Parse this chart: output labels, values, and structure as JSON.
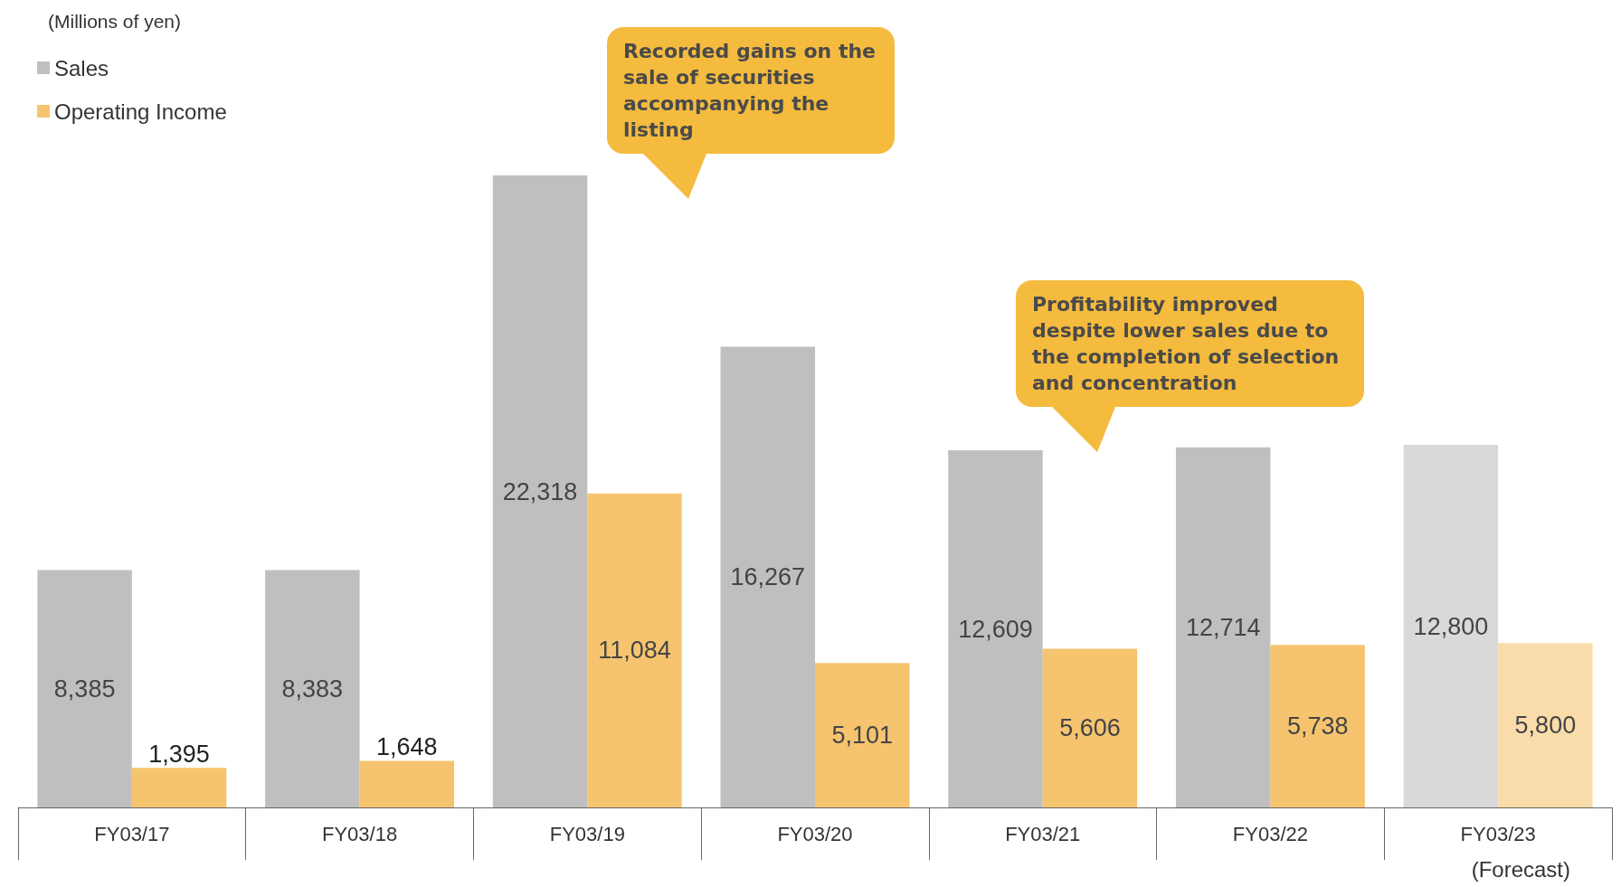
{
  "chart_data": {
    "type": "bar",
    "categories": [
      "FY03/17",
      "FY03/18",
      "FY03/19",
      "FY03/20",
      "FY03/21",
      "FY03/22",
      "FY03/23"
    ],
    "series": [
      {
        "name": "Sales",
        "color": "#bfbfbf",
        "colors": [
          "#bfbfbf",
          "#bfbfbf",
          "#bfbfbf",
          "#bfbfbf",
          "#bfbfbf",
          "#bfbfbf",
          "#d9d9d9"
        ],
        "values": [
          8385,
          8383,
          22318,
          16267,
          12609,
          12714,
          12800
        ],
        "value_labels": [
          "8,385",
          "8,383",
          "22,318",
          "16,267",
          "12,609",
          "12,714",
          "12,800"
        ]
      },
      {
        "name": "Operating Income",
        "color": "#f6c46f",
        "colors": [
          "#f6c46f",
          "#f6c46f",
          "#f6c46f",
          "#f6c46f",
          "#f6c46f",
          "#f6c46f",
          "#fadcaa"
        ],
        "values": [
          1395,
          1648,
          11084,
          5101,
          5606,
          5738,
          5800
        ],
        "value_labels": [
          "1,395",
          "1,648",
          "11,084",
          "5,101",
          "5,606",
          "5,738",
          "5,800"
        ]
      }
    ],
    "legend": "top left",
    "grid": false,
    "annotations": [
      "(Millions of yen)",
      "Recorded gains on the sale of securities accompanying the listing",
      "Profitability improved despite lower sales due to the completion of selection and concentration",
      "(Forecast)"
    ]
  }
}
